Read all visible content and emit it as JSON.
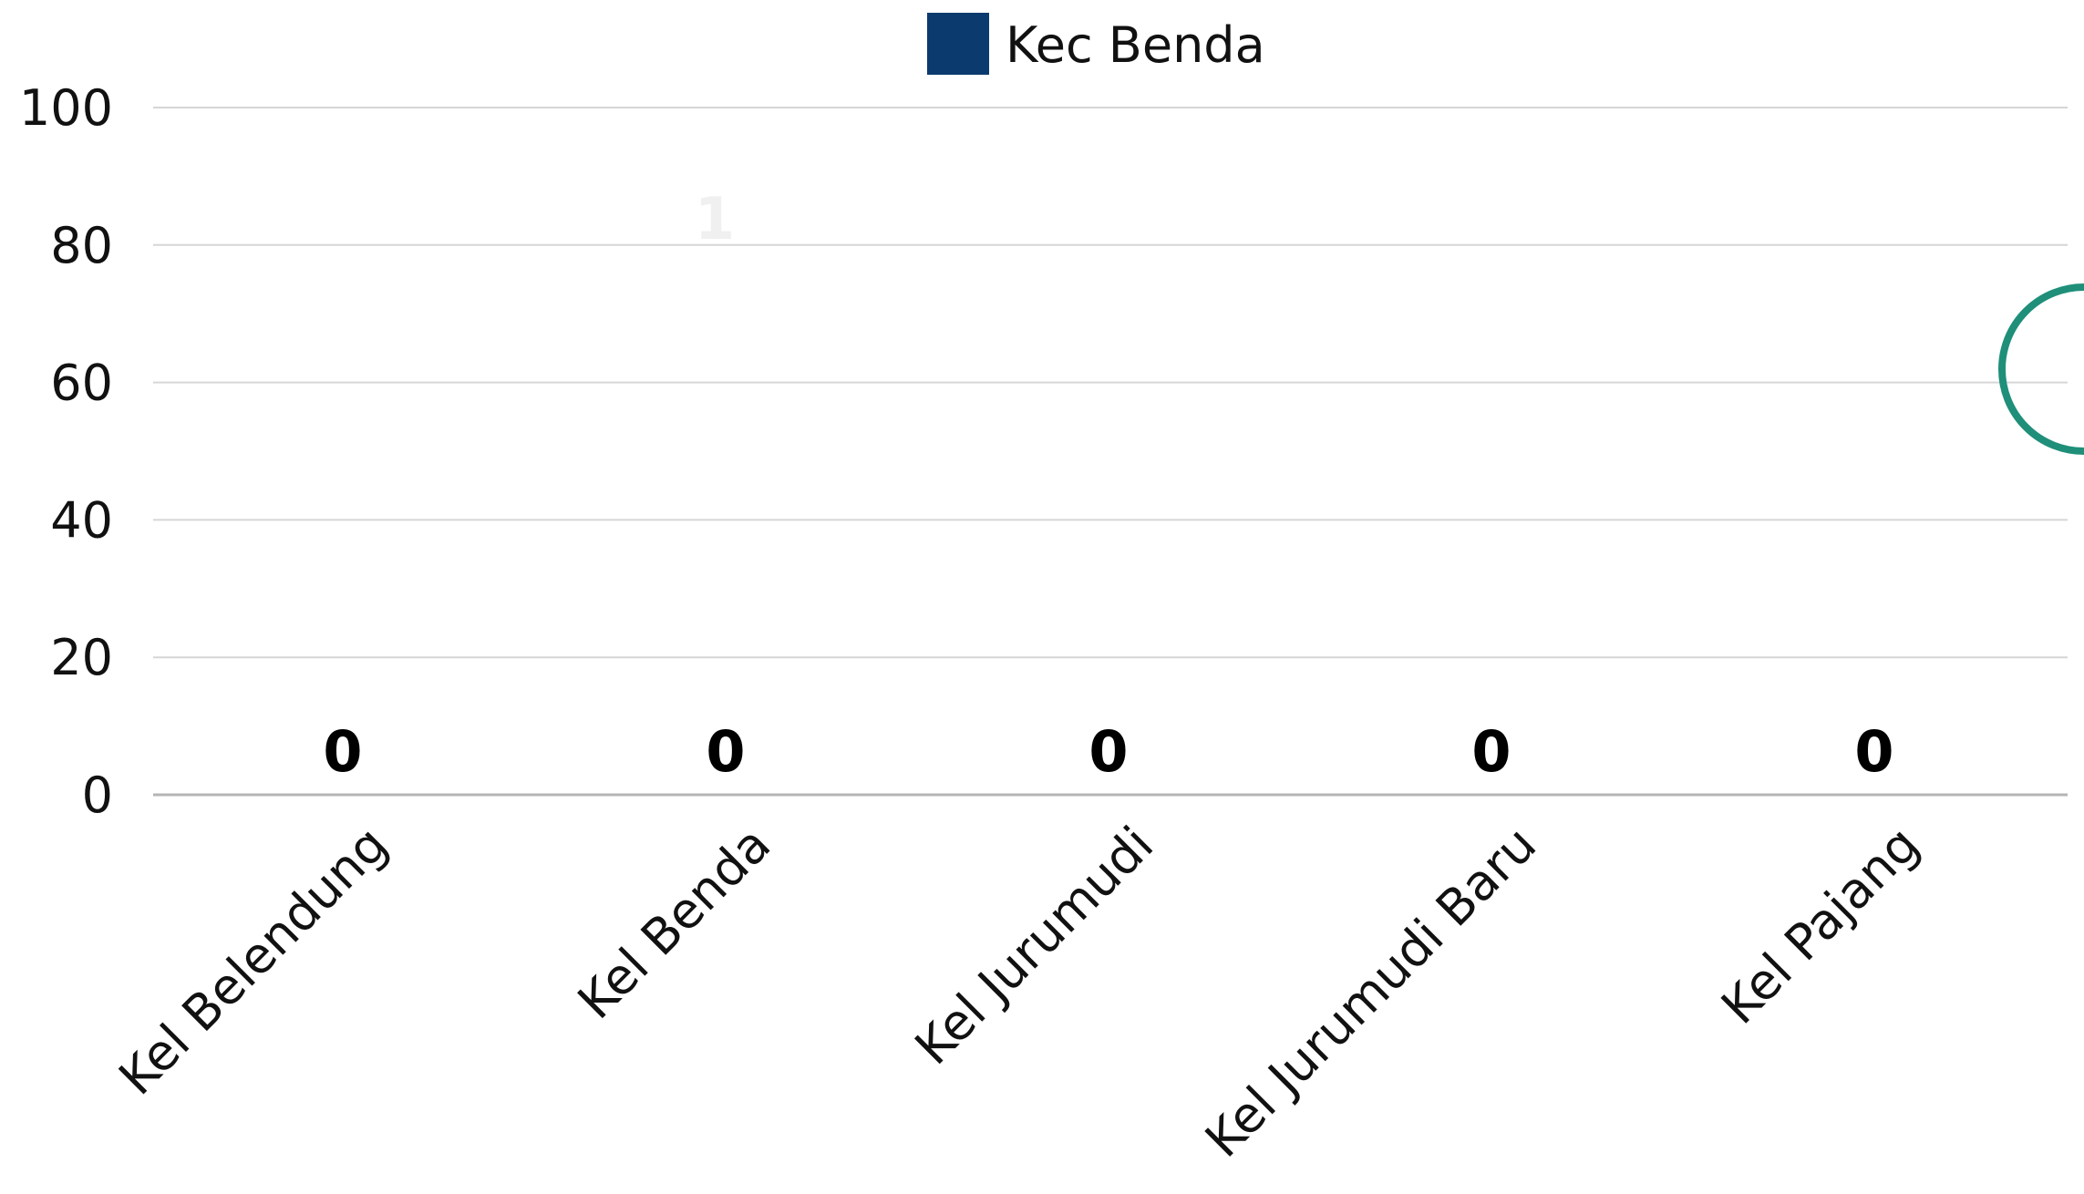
{
  "chart_data": {
    "type": "bar",
    "categories": [
      "Kel Belendung",
      "Kel Benda",
      "Kel Jurumudi",
      "Kel Jurumudi Baru",
      "Kel Pajang"
    ],
    "series": [
      {
        "name": "Kec Benda",
        "values": [
          0,
          0,
          0,
          0,
          0
        ],
        "color": "#0b3a6e"
      }
    ],
    "data_labels": [
      "0",
      "0",
      "0",
      "0",
      "0"
    ],
    "yticks": [
      "0",
      "20",
      "40",
      "60",
      "80",
      "100"
    ],
    "ylim": [
      0,
      100
    ],
    "grid": true,
    "legend_position": "top-center",
    "faint_annotation": "1",
    "accent_color": "#1f8f7a"
  }
}
